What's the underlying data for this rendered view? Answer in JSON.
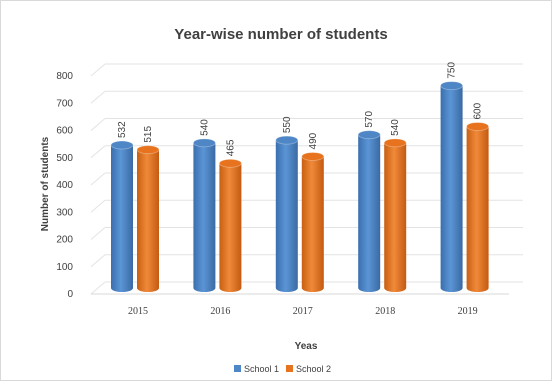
{
  "chart_data": {
    "type": "bar",
    "title": "Year-wise number of students",
    "xlabel": "Yeas",
    "ylabel": "Number of students",
    "categories": [
      "2015",
      "2016",
      "2017",
      "2018",
      "2019"
    ],
    "series": [
      {
        "name": "School 1",
        "values": [
          532,
          540,
          550,
          570,
          750
        ],
        "color": "#4f86c6"
      },
      {
        "name": "School 2",
        "values": [
          515,
          465,
          490,
          540,
          600
        ],
        "color": "#e8731f"
      }
    ],
    "ylim": [
      0,
      800
    ],
    "yticks": [
      0,
      100,
      200,
      300,
      400,
      500,
      600,
      700,
      800
    ],
    "grid": true,
    "legend_position": "bottom",
    "style": "3d-cylinder"
  }
}
